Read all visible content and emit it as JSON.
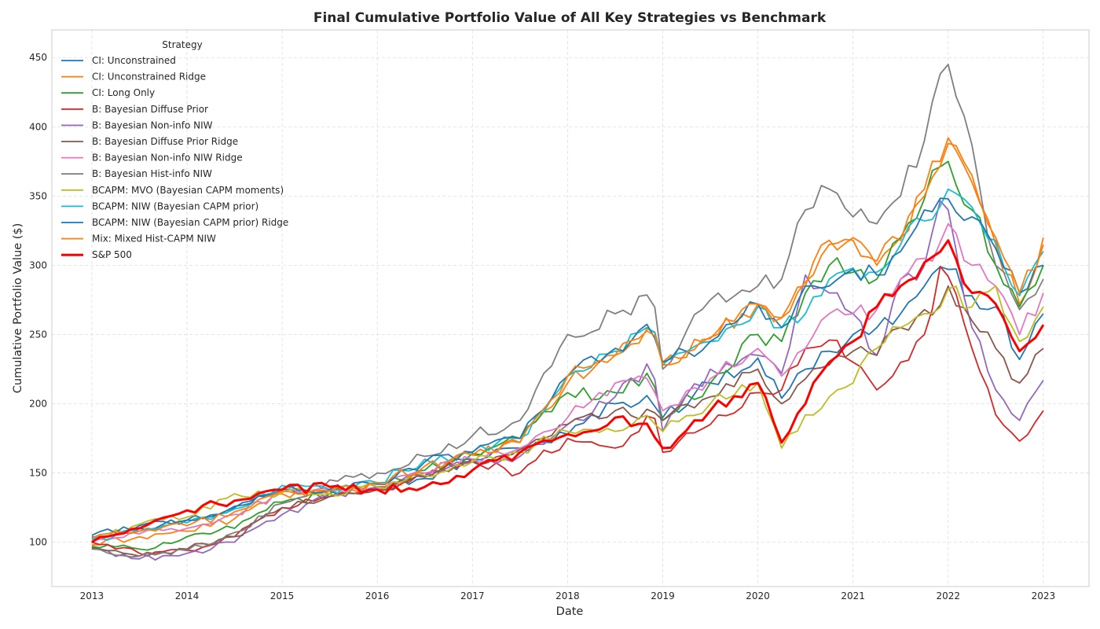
{
  "chart_data": {
    "type": "line",
    "title": "Final Cumulative Portfolio Value of All Key Strategies vs Benchmark",
    "xlabel": "Date",
    "ylabel": "Cumulative Portfolio Value ($)",
    "xlim": [
      2012.58,
      2023.48
    ],
    "ylim": [
      68,
      470
    ],
    "x_ticks": [
      2013,
      2014,
      2015,
      2016,
      2017,
      2018,
      2019,
      2020,
      2021,
      2022,
      2023
    ],
    "y_ticks": [
      100,
      150,
      200,
      250,
      300,
      350,
      400,
      450
    ],
    "grid": true,
    "legend_title": "Strategy",
    "legend_position": "upper-left",
    "anchor_x": [
      2013.0,
      2013.5,
      2014.0,
      2014.5,
      2015.0,
      2015.5,
      2016.0,
      2016.5,
      2017.0,
      2017.5,
      2018.0,
      2018.5,
      2018.9,
      2019.0,
      2019.5,
      2020.0,
      2020.25,
      2020.5,
      2020.75,
      2021.0,
      2021.25,
      2021.5,
      2021.75,
      2021.9,
      2022.0,
      2022.25,
      2022.5,
      2022.75,
      2023.0
    ],
    "series": [
      {
        "name": "CI: Unconstrained",
        "color": "#1f77b4",
        "width": 1.8,
        "values": [
          104,
          110,
          116,
          125,
          138,
          137,
          140,
          146,
          160,
          168,
          178,
          200,
          205,
          190,
          215,
          233,
          204,
          225,
          238,
          250,
          255,
          265,
          285,
          292,
          297,
          278,
          270,
          232,
          265
        ]
      },
      {
        "name": "CI: Unconstrained Ridge",
        "color": "#ff7f0e",
        "width": 1.8,
        "values": [
          98,
          104,
          108,
          117,
          135,
          135,
          140,
          150,
          163,
          172,
          215,
          235,
          255,
          230,
          248,
          272,
          262,
          285,
          318,
          320,
          300,
          320,
          355,
          378,
          392,
          360,
          315,
          272,
          320
        ]
      },
      {
        "name": "CI: Long Only",
        "color": "#2ca02c",
        "width": 1.8,
        "values": [
          97,
          95,
          104,
          110,
          129,
          135,
          142,
          152,
          164,
          175,
          208,
          208,
          222,
          188,
          215,
          250,
          245,
          280,
          300,
          295,
          290,
          320,
          348,
          370,
          375,
          340,
          300,
          270,
          300
        ]
      },
      {
        "name": "B: Bayesian Diffuse Prior",
        "color": "#d62728",
        "width": 1.8,
        "values": [
          100,
          92,
          94,
          104,
          125,
          133,
          138,
          148,
          160,
          150,
          175,
          168,
          193,
          165,
          185,
          208,
          210,
          240,
          246,
          230,
          210,
          230,
          250,
          295,
          292,
          240,
          192,
          173,
          195
        ]
      },
      {
        "name": "B: Bayesian Non-info NIW",
        "color": "#9467bd",
        "width": 1.8,
        "values": [
          96,
          88,
          92,
          100,
          120,
          133,
          140,
          148,
          158,
          162,
          185,
          205,
          230,
          180,
          225,
          235,
          222,
          293,
          280,
          265,
          235,
          290,
          300,
          356,
          340,
          255,
          210,
          188,
          217
        ]
      },
      {
        "name": "B: Bayesian Diffuse Prior Ridge",
        "color": "#8c564b",
        "width": 1.8,
        "values": [
          96,
          90,
          95,
          104,
          125,
          133,
          138,
          147,
          158,
          167,
          185,
          195,
          193,
          188,
          205,
          225,
          200,
          218,
          228,
          238,
          235,
          255,
          268,
          270,
          285,
          260,
          240,
          215,
          240
        ]
      },
      {
        "name": "B: Bayesian Non-info NIW Ridge",
        "color": "#e377c2",
        "width": 1.8,
        "values": [
          101,
          106,
          110,
          120,
          136,
          138,
          139,
          150,
          160,
          168,
          190,
          215,
          215,
          195,
          218,
          240,
          220,
          240,
          265,
          265,
          268,
          290,
          305,
          310,
          330,
          300,
          285,
          250,
          280
        ]
      },
      {
        "name": "B: Bayesian Hist-info NIW",
        "color": "#7f7f7f",
        "width": 1.8,
        "values": [
          95,
          90,
          94,
          107,
          128,
          145,
          150,
          162,
          177,
          188,
          250,
          265,
          276,
          225,
          275,
          285,
          290,
          340,
          355,
          335,
          330,
          350,
          390,
          450,
          445,
          387,
          300,
          268,
          290
        ]
      },
      {
        "name": "BCAPM: MVO (Bayesian CAPM moments)",
        "color": "#bcbd22",
        "width": 1.8,
        "values": [
          102,
          113,
          118,
          135,
          136,
          135,
          140,
          148,
          158,
          165,
          180,
          180,
          190,
          180,
          200,
          215,
          168,
          192,
          205,
          215,
          240,
          255,
          265,
          270,
          283,
          270,
          285,
          245,
          270
        ]
      },
      {
        "name": "BCAPM: NIW (Bayesian CAPM prior)",
        "color": "#17becf",
        "width": 1.8,
        "values": [
          102,
          108,
          114,
          124,
          141,
          138,
          143,
          160,
          165,
          175,
          220,
          238,
          253,
          228,
          245,
          270,
          255,
          265,
          290,
          298,
          295,
          315,
          332,
          338,
          355,
          342,
          318,
          278,
          310
        ]
      },
      {
        "name": "BCAPM: NIW (Bayesian CAPM prior) Ridge",
        "color": "#1f77b4",
        "width": 1.8,
        "values": [
          105,
          112,
          116,
          126,
          138,
          138,
          142,
          158,
          165,
          175,
          220,
          240,
          255,
          230,
          245,
          272,
          255,
          285,
          285,
          297,
          293,
          310,
          340,
          340,
          348,
          335,
          312,
          280,
          300
        ]
      },
      {
        "name": "Mix: Mixed Hist-CAPM NIW",
        "color": "#ff7f0e",
        "width": 1.8,
        "values": [
          103,
          108,
          112,
          122,
          137,
          137,
          143,
          155,
          163,
          172,
          220,
          235,
          250,
          228,
          247,
          272,
          262,
          288,
          315,
          318,
          303,
          318,
          350,
          375,
          388,
          365,
          320,
          280,
          315
        ]
      },
      {
        "name": "S&P 500",
        "color": "#ff0000",
        "width": 3,
        "values": [
          100,
          110,
          123,
          130,
          138,
          140,
          138,
          140,
          152,
          165,
          178,
          190,
          180,
          168,
          195,
          215,
          172,
          200,
          230,
          245,
          270,
          285,
          302,
          308,
          318,
          280,
          272,
          238,
          257
        ]
      }
    ]
  }
}
